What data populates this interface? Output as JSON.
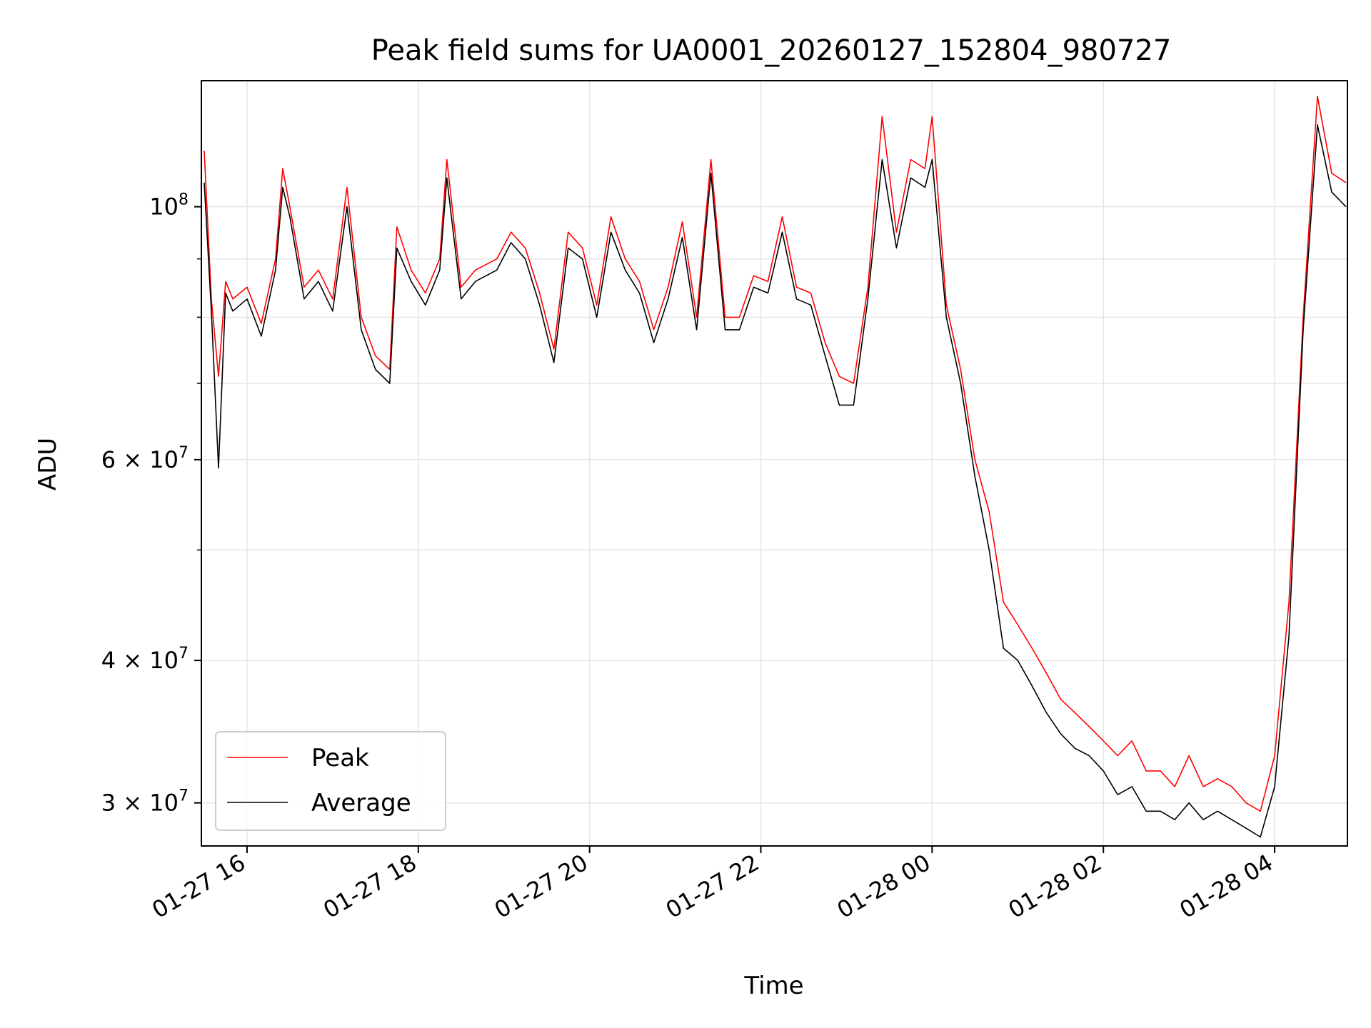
{
  "chart_data": {
    "type": "line",
    "title": "Peak field sums for UA0001_20260127_152804_980727",
    "xlabel": "Time",
    "ylabel": "ADU",
    "y_scale": "log",
    "xlim": [
      "2026-01-27 15:28",
      "2026-01-28 04:51"
    ],
    "ylim": [
      27500000,
      129000000
    ],
    "grid": true,
    "legend": "lower-left",
    "x_ticks": [
      {
        "value": "2026-01-27 16:00",
        "label": "01-27 16"
      },
      {
        "value": "2026-01-27 18:00",
        "label": "01-27 18"
      },
      {
        "value": "2026-01-27 20:00",
        "label": "01-27 20"
      },
      {
        "value": "2026-01-27 22:00",
        "label": "01-27 22"
      },
      {
        "value": "2026-01-28 00:00",
        "label": "01-28 00"
      },
      {
        "value": "2026-01-28 02:00",
        "label": "01-28 02"
      },
      {
        "value": "2026-01-28 04:00",
        "label": "01-28 04"
      }
    ],
    "y_ticks_major": [
      {
        "value": 100000000,
        "base": "10",
        "exp": "8",
        "prefix": ""
      },
      {
        "value": 60000000,
        "base": "10",
        "exp": "7",
        "prefix": "6 × "
      },
      {
        "value": 40000000,
        "base": "10",
        "exp": "7",
        "prefix": "4 × "
      },
      {
        "value": 30000000,
        "base": "10",
        "exp": "7",
        "prefix": "3 × "
      }
    ],
    "y_ticks_minor": [
      50000000,
      70000000,
      80000000,
      90000000
    ],
    "series": [
      {
        "name": "Peak",
        "color": "#ff0000",
        "x": [
          "2026-01-27 15:30",
          "2026-01-27 15:35",
          "2026-01-27 15:40",
          "2026-01-27 15:45",
          "2026-01-27 15:50",
          "2026-01-27 16:00",
          "2026-01-27 16:10",
          "2026-01-27 16:20",
          "2026-01-27 16:25",
          "2026-01-27 16:30",
          "2026-01-27 16:40",
          "2026-01-27 16:50",
          "2026-01-27 17:00",
          "2026-01-27 17:10",
          "2026-01-27 17:20",
          "2026-01-27 17:30",
          "2026-01-27 17:40",
          "2026-01-27 17:45",
          "2026-01-27 17:55",
          "2026-01-27 18:05",
          "2026-01-27 18:15",
          "2026-01-27 18:20",
          "2026-01-27 18:30",
          "2026-01-27 18:40",
          "2026-01-27 18:55",
          "2026-01-27 19:05",
          "2026-01-27 19:15",
          "2026-01-27 19:25",
          "2026-01-27 19:35",
          "2026-01-27 19:45",
          "2026-01-27 19:55",
          "2026-01-27 20:05",
          "2026-01-27 20:15",
          "2026-01-27 20:25",
          "2026-01-27 20:35",
          "2026-01-27 20:45",
          "2026-01-27 20:55",
          "2026-01-27 21:05",
          "2026-01-27 21:15",
          "2026-01-27 21:25",
          "2026-01-27 21:35",
          "2026-01-27 21:45",
          "2026-01-27 21:55",
          "2026-01-27 22:05",
          "2026-01-27 22:15",
          "2026-01-27 22:25",
          "2026-01-27 22:35",
          "2026-01-27 22:45",
          "2026-01-27 22:55",
          "2026-01-27 23:05",
          "2026-01-27 23:15",
          "2026-01-27 23:25",
          "2026-01-27 23:35",
          "2026-01-27 23:45",
          "2026-01-27 23:55",
          "2026-01-28 00:00",
          "2026-01-28 00:10",
          "2026-01-28 00:20",
          "2026-01-28 00:30",
          "2026-01-28 00:40",
          "2026-01-28 00:50",
          "2026-01-28 01:00",
          "2026-01-28 01:10",
          "2026-01-28 01:20",
          "2026-01-28 01:30",
          "2026-01-28 01:40",
          "2026-01-28 01:50",
          "2026-01-28 02:00",
          "2026-01-28 02:10",
          "2026-01-28 02:20",
          "2026-01-28 02:30",
          "2026-01-28 02:40",
          "2026-01-28 02:50",
          "2026-01-28 03:00",
          "2026-01-28 03:10",
          "2026-01-28 03:20",
          "2026-01-28 03:30",
          "2026-01-28 03:40",
          "2026-01-28 03:50",
          "2026-01-28 04:00",
          "2026-01-28 04:10",
          "2026-01-28 04:20",
          "2026-01-28 04:30",
          "2026-01-28 04:40",
          "2026-01-28 04:50"
        ],
        "values": [
          112000000,
          83000000,
          71000000,
          86000000,
          83000000,
          85000000,
          79000000,
          90000000,
          108000000,
          100000000,
          85000000,
          88000000,
          83000000,
          104000000,
          80000000,
          74000000,
          72000000,
          96000000,
          88000000,
          84000000,
          90000000,
          110000000,
          85000000,
          88000000,
          90000000,
          95000000,
          92000000,
          84000000,
          75000000,
          95000000,
          92000000,
          82000000,
          98000000,
          90000000,
          86000000,
          78000000,
          85000000,
          97000000,
          80000000,
          110000000,
          80000000,
          80000000,
          87000000,
          86000000,
          98000000,
          85000000,
          84000000,
          76000000,
          71000000,
          70000000,
          85000000,
          120000000,
          95000000,
          110000000,
          108000000,
          120000000,
          82000000,
          72000000,
          60000000,
          54000000,
          45000000,
          43000000,
          41000000,
          39000000,
          37000000,
          36000000,
          35000000,
          34000000,
          33000000,
          34000000,
          32000000,
          32000000,
          31000000,
          33000000,
          31000000,
          31500000,
          31000000,
          30000000,
          29500000,
          33000000,
          45000000,
          80000000,
          125000000,
          107000000,
          105000000
        ]
      },
      {
        "name": "Average",
        "color": "#000000",
        "x": [
          "2026-01-27 15:30",
          "2026-01-27 15:35",
          "2026-01-27 15:40",
          "2026-01-27 15:45",
          "2026-01-27 15:50",
          "2026-01-27 16:00",
          "2026-01-27 16:10",
          "2026-01-27 16:20",
          "2026-01-27 16:25",
          "2026-01-27 16:30",
          "2026-01-27 16:40",
          "2026-01-27 16:50",
          "2026-01-27 17:00",
          "2026-01-27 17:10",
          "2026-01-27 17:20",
          "2026-01-27 17:30",
          "2026-01-27 17:40",
          "2026-01-27 17:45",
          "2026-01-27 17:55",
          "2026-01-27 18:05",
          "2026-01-27 18:15",
          "2026-01-27 18:20",
          "2026-01-27 18:30",
          "2026-01-27 18:40",
          "2026-01-27 18:55",
          "2026-01-27 19:05",
          "2026-01-27 19:15",
          "2026-01-27 19:25",
          "2026-01-27 19:35",
          "2026-01-27 19:45",
          "2026-01-27 19:55",
          "2026-01-27 20:05",
          "2026-01-27 20:15",
          "2026-01-27 20:25",
          "2026-01-27 20:35",
          "2026-01-27 20:45",
          "2026-01-27 20:55",
          "2026-01-27 21:05",
          "2026-01-27 21:15",
          "2026-01-27 21:25",
          "2026-01-27 21:35",
          "2026-01-27 21:45",
          "2026-01-27 21:55",
          "2026-01-27 22:05",
          "2026-01-27 22:15",
          "2026-01-27 22:25",
          "2026-01-27 22:35",
          "2026-01-27 22:45",
          "2026-01-27 22:55",
          "2026-01-27 23:05",
          "2026-01-27 23:15",
          "2026-01-27 23:25",
          "2026-01-27 23:35",
          "2026-01-27 23:45",
          "2026-01-27 23:55",
          "2026-01-28 00:00",
          "2026-01-28 00:10",
          "2026-01-28 00:20",
          "2026-01-28 00:30",
          "2026-01-28 00:40",
          "2026-01-28 00:50",
          "2026-01-28 01:00",
          "2026-01-28 01:10",
          "2026-01-28 01:20",
          "2026-01-28 01:30",
          "2026-01-28 01:40",
          "2026-01-28 01:50",
          "2026-01-28 02:00",
          "2026-01-28 02:10",
          "2026-01-28 02:20",
          "2026-01-28 02:30",
          "2026-01-28 02:40",
          "2026-01-28 02:50",
          "2026-01-28 03:00",
          "2026-01-28 03:10",
          "2026-01-28 03:20",
          "2026-01-28 03:30",
          "2026-01-28 03:40",
          "2026-01-28 03:50",
          "2026-01-28 04:00",
          "2026-01-28 04:10",
          "2026-01-28 04:20",
          "2026-01-28 04:30",
          "2026-01-28 04:40",
          "2026-01-28 04:50"
        ],
        "values": [
          105000000,
          81000000,
          59000000,
          84000000,
          81000000,
          83000000,
          77000000,
          88000000,
          104000000,
          98000000,
          83000000,
          86000000,
          81000000,
          100000000,
          78000000,
          72000000,
          70000000,
          92000000,
          86000000,
          82000000,
          88000000,
          106000000,
          83000000,
          86000000,
          88000000,
          93000000,
          90000000,
          82000000,
          73000000,
          92000000,
          90000000,
          80000000,
          95000000,
          88000000,
          84000000,
          76000000,
          83000000,
          94000000,
          78000000,
          107000000,
          78000000,
          78000000,
          85000000,
          84000000,
          95000000,
          83000000,
          82000000,
          74000000,
          67000000,
          67000000,
          83000000,
          110000000,
          92000000,
          106000000,
          104000000,
          110000000,
          80000000,
          70000000,
          58000000,
          50000000,
          41000000,
          40000000,
          38000000,
          36000000,
          34500000,
          33500000,
          33000000,
          32000000,
          30500000,
          31000000,
          29500000,
          29500000,
          29000000,
          30000000,
          29000000,
          29500000,
          29000000,
          28500000,
          28000000,
          31000000,
          42000000,
          78000000,
          118000000,
          103000000,
          100000000
        ]
      }
    ]
  }
}
